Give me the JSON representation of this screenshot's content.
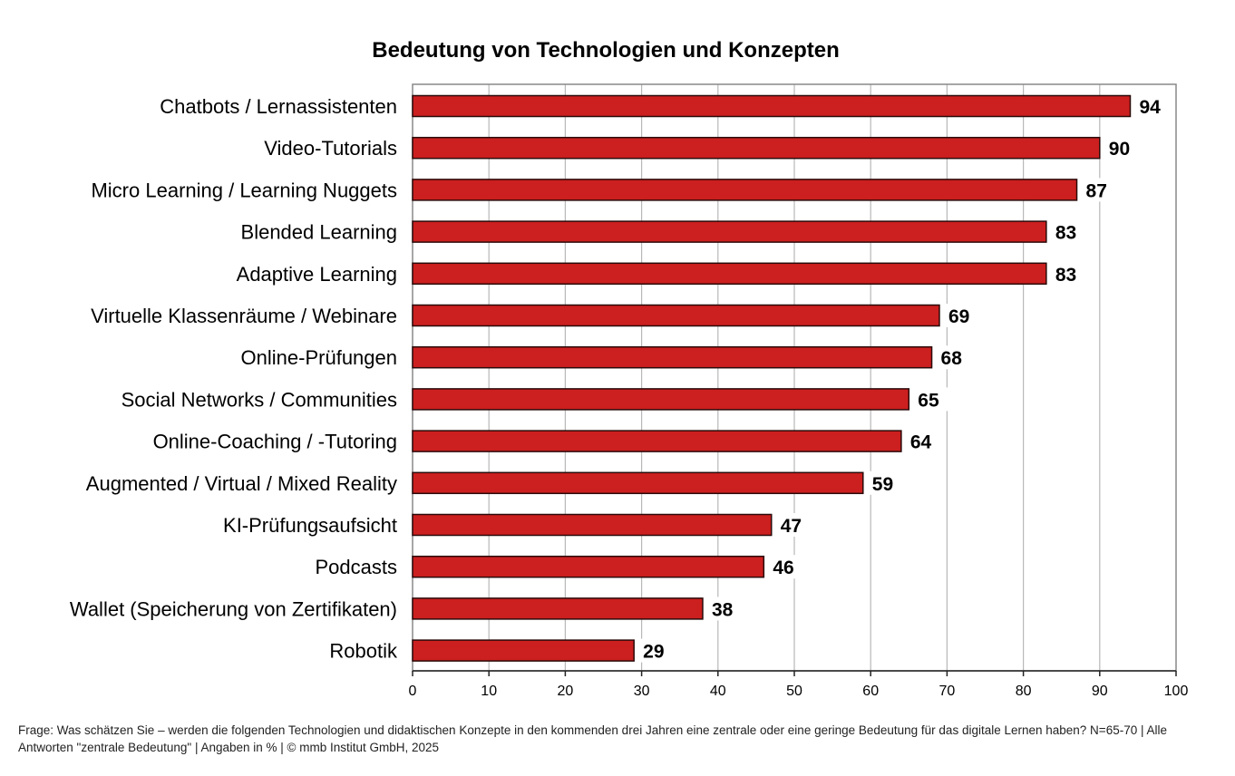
{
  "chart_data": {
    "type": "bar",
    "orientation": "horizontal",
    "title": "Bedeutung von Technologien und Konzepten",
    "xlabel": "",
    "ylabel": "",
    "categories": [
      "Chatbots / Lernassistenten",
      "Video-Tutorials",
      "Micro Learning / Learning Nuggets",
      "Blended Learning",
      "Adaptive Learning",
      "Virtuelle Klassenräume / Webinare",
      "Online-Prüfungen",
      "Social Networks / Communities",
      "Online-Coaching / -Tutoring",
      "Augmented / Virtual / Mixed Reality",
      "KI-Prüfungsaufsicht",
      "Podcasts",
      "Wallet (Speicherung von Zertifikaten)",
      "Robotik"
    ],
    "values": [
      94,
      90,
      87,
      83,
      83,
      69,
      68,
      65,
      64,
      59,
      47,
      46,
      38,
      29
    ],
    "xlim": [
      0,
      100
    ],
    "xticks": [
      0,
      10,
      20,
      30,
      40,
      50,
      60,
      70,
      80,
      90,
      100
    ],
    "grid": true,
    "legend": "none",
    "bar_color": "#cc1f1f",
    "bar_edge_color": "#2b0a0a"
  },
  "footnote": "Frage: Was schätzen Sie – werden die folgenden Technologien und didaktischen Konzepte in den kommenden drei Jahren eine zentrale oder eine geringe Bedeutung für das digitale Lernen haben? N=65-70 | Alle Antworten \"zentrale Bedeutung\" | Angaben in % | © mmb Institut GmbH, 2025"
}
